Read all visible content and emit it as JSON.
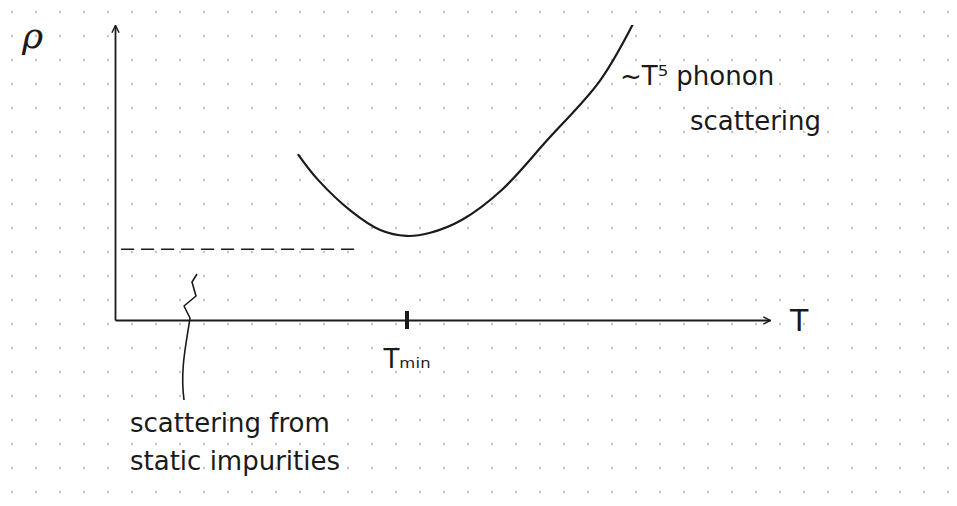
{
  "chart_data": {
    "type": "line",
    "x_label": "T",
    "y_label": "ρ",
    "xlim": [
      0,
      10
    ],
    "ylim": [
      0,
      10
    ],
    "xticks": [
      {
        "value": 4.45,
        "label": "Tₘᵢₙ"
      }
    ],
    "tick_labels": "x",
    "series": [
      {
        "x": [
          2.8,
          3.1,
          3.6,
          4.05,
          4.45,
          4.8,
          5.3,
          5.9,
          6.6,
          7.4,
          7.9
        ],
        "values": [
          5.6,
          4.75,
          3.7,
          3.05,
          2.85,
          2.95,
          3.4,
          4.4,
          6.1,
          8.1,
          10.0
        ],
        "color": "#1a1a1a",
        "line_style": "solid"
      },
      {
        "x": [
          0.1,
          3.7
        ],
        "values": [
          2.4,
          2.4
        ],
        "color": "#1a1a1a",
        "line_style": "dashed"
      }
    ],
    "annotations": [
      {
        "lines": [
          "~T⁵ phonon",
          "scattering"
        ]
      },
      {
        "lines": [
          "scattering from",
          "static impurities"
        ]
      }
    ]
  }
}
